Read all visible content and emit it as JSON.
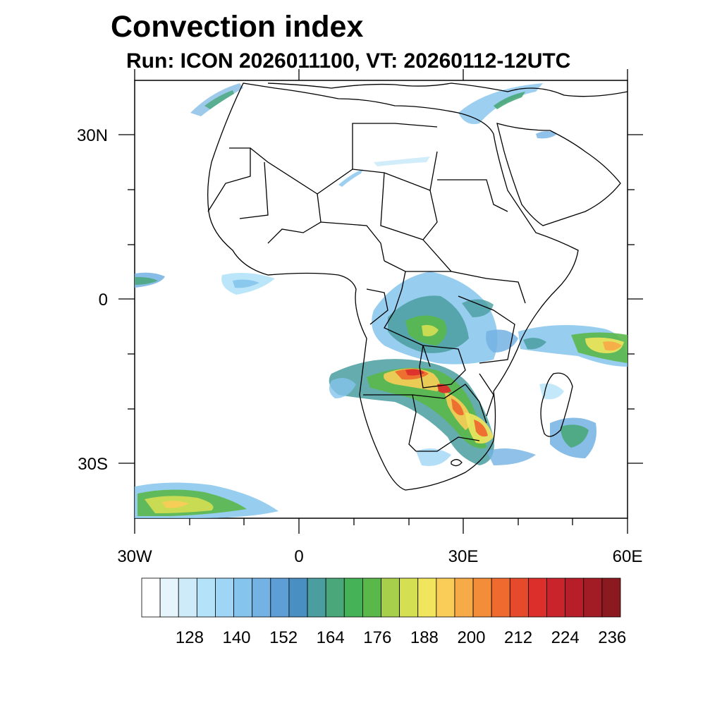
{
  "title": "Convection index",
  "subtitle": "Run: ICON 2026011100,  VT: 20260112-12UTC",
  "map": {
    "region": "Africa",
    "lon_range": [
      -30,
      60
    ],
    "lat_range": [
      -40,
      40
    ],
    "x_ticks": [
      {
        "lon": -30,
        "label": "30W"
      },
      {
        "lon": 0,
        "label": "0"
      },
      {
        "lon": 30,
        "label": "30E"
      },
      {
        "lon": 60,
        "label": "60E"
      }
    ],
    "y_ticks": [
      {
        "lat": 30,
        "label": "30N"
      },
      {
        "lat": 0,
        "label": "0"
      },
      {
        "lat": -30,
        "label": "30S"
      }
    ],
    "minor_x_ticks": [
      -20,
      -10,
      10,
      20,
      40,
      50
    ],
    "minor_y_ticks": [
      20,
      10,
      -10,
      -20
    ]
  },
  "colorbar": {
    "labels": [
      "128",
      "140",
      "152",
      "164",
      "176",
      "188",
      "200",
      "212",
      "224",
      "236"
    ],
    "colors": [
      "#ffffff",
      "#e6f5fc",
      "#cdebf9",
      "#b4e2f8",
      "#a0d6f5",
      "#85c4ec",
      "#73b2e3",
      "#5d9ed6",
      "#4a8fc2",
      "#4a9ea0",
      "#49a77a",
      "#45b257",
      "#5ab84a",
      "#a8cf4b",
      "#d5df52",
      "#f1e55d",
      "#f9cd57",
      "#f7ab48",
      "#f38d3a",
      "#ee6a2e",
      "#e54b2a",
      "#dc2f2c",
      "#c9232c",
      "#b71e2a",
      "#a11c25",
      "#8a1a1f"
    ]
  }
}
